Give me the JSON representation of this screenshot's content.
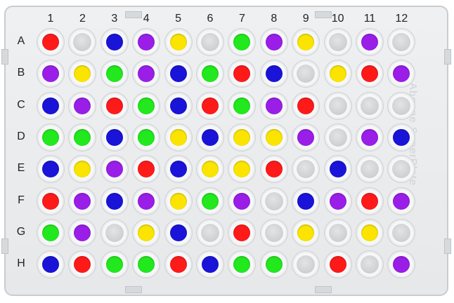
{
  "columns": [
    "1",
    "2",
    "3",
    "4",
    "5",
    "6",
    "7",
    "8",
    "9",
    "10",
    "11",
    "12"
  ],
  "rows": [
    "A",
    "B",
    "C",
    "D",
    "E",
    "F",
    "G",
    "H"
  ],
  "watermark": "Abgene SuperPlate",
  "colors": {
    "R": "#ff1a1a",
    "Y": "#fbe500",
    "G": "#22e81e",
    "B": "#1a14d9",
    "P": "#9a1ee8",
    "E": "empty"
  },
  "wells": [
    [
      "R",
      "E",
      "B",
      "P",
      "Y",
      "E",
      "G",
      "P",
      "Y",
      "E",
      "P",
      "E"
    ],
    [
      "P",
      "Y",
      "G",
      "P",
      "B",
      "G",
      "R",
      "B",
      "E",
      "Y",
      "R",
      "P"
    ],
    [
      "B",
      "P",
      "R",
      "G",
      "B",
      "R",
      "G",
      "P",
      "R",
      "E",
      "E",
      "E"
    ],
    [
      "G",
      "G",
      "B",
      "G",
      "Y",
      "B",
      "Y",
      "Y",
      "P",
      "E",
      "P",
      "B"
    ],
    [
      "B",
      "Y",
      "P",
      "R",
      "B",
      "Y",
      "Y",
      "R",
      "E",
      "B",
      "E",
      "E"
    ],
    [
      "R",
      "P",
      "B",
      "P",
      "Y",
      "G",
      "P",
      "E",
      "B",
      "P",
      "R",
      "P"
    ],
    [
      "G",
      "P",
      "E",
      "Y",
      "B",
      "E",
      "R",
      "E",
      "Y",
      "E",
      "Y",
      "E"
    ],
    [
      "B",
      "R",
      "G",
      "G",
      "R",
      "B",
      "G",
      "G",
      "E",
      "R",
      "E",
      "P"
    ]
  ]
}
